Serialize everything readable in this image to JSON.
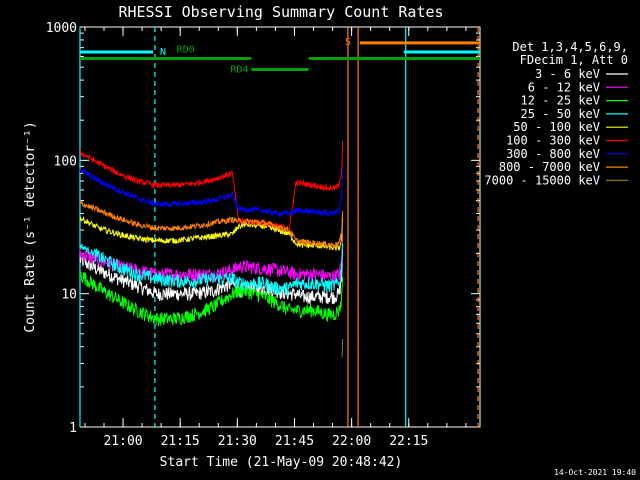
{
  "chart_data": {
    "type": "line",
    "title": "RHESSI Observing Summary Count Rates",
    "xlabel": "Start Time (21-May-09 20:48:42)",
    "ylabel": "Count Rate (s⁻¹ detector⁻¹)",
    "ylog": true,
    "ylim": [
      1,
      1000
    ],
    "xlim": [
      0,
      6300
    ],
    "x_unit": "seconds after 21-May-09 20:48:42",
    "x_ticks": [
      {
        "t": 678,
        "label": "21:00"
      },
      {
        "t": 1578,
        "label": "21:15"
      },
      {
        "t": 2478,
        "label": "21:30"
      },
      {
        "t": 3378,
        "label": "21:45"
      },
      {
        "t": 4278,
        "label": "22:00"
      },
      {
        "t": 5178,
        "label": "22:15"
      }
    ],
    "y_ticks": [
      {
        "v": 1,
        "label": "1"
      },
      {
        "v": 10,
        "label": "10"
      },
      {
        "v": 100,
        "label": "100"
      },
      {
        "v": 1000,
        "label": "1000"
      }
    ],
    "legend_header": [
      "Det 1,3,4,5,6,9,",
      "FDecim 1, Att 0"
    ],
    "footer_date": "14-Oct-2021 19:40",
    "x": [
      0,
      300,
      600,
      900,
      1200,
      1500,
      1800,
      2100,
      2400,
      2500,
      2600,
      2900,
      3100,
      3300,
      3400,
      3500,
      3700,
      3900,
      4000,
      4080,
      4120,
      4140
    ],
    "series": [
      {
        "name": "3 - 6 keV",
        "color": "#ffffff",
        "values": [
          18,
          15,
          13,
          11.5,
          10,
          10,
          10,
          10.5,
          12,
          10.5,
          11,
          11,
          10.5,
          10,
          10,
          9.5,
          9.5,
          9.5,
          9.5,
          10,
          13,
          26
        ]
      },
      {
        "name": "6 - 12 keV",
        "color": "#ff00ff",
        "values": [
          20,
          18,
          16,
          15,
          14,
          14,
          14,
          14,
          15,
          16,
          16,
          15.5,
          15,
          14.5,
          14,
          14,
          14,
          13.5,
          13.5,
          14,
          17,
          30
        ]
      },
      {
        "name": "12 - 25 keV",
        "color": "#00ff00",
        "values": [
          14,
          11,
          9,
          7.5,
          6.5,
          6.5,
          7,
          8,
          10,
          10.5,
          10.5,
          9.5,
          8.5,
          7.5,
          7.5,
          7.5,
          7.5,
          7,
          7,
          7.5,
          9,
          16
        ]
      },
      {
        "name": "25 - 50 keV",
        "color": "#00ffff",
        "values": [
          23,
          19,
          16,
          14,
          13,
          12.5,
          12.5,
          13,
          13,
          12,
          12,
          12,
          11,
          11,
          12,
          12,
          12,
          11.5,
          11.5,
          12,
          16,
          28
        ]
      },
      {
        "name": "50 - 100 keV",
        "color": "#ffff00",
        "values": [
          37,
          31,
          28,
          26,
          25,
          25,
          26,
          27,
          28,
          32,
          33,
          32,
          30,
          28,
          24,
          23,
          23,
          22.5,
          22,
          22,
          25,
          40
        ]
      },
      {
        "name": "100 - 300 keV",
        "color": "#ff0000",
        "values": [
          115,
          95,
          80,
          70,
          65,
          65,
          67,
          72,
          80,
          35,
          35,
          34,
          32,
          31,
          68,
          67,
          65,
          62,
          62,
          64,
          80,
          170
        ]
      },
      {
        "name": "300 - 800 keV",
        "color": "#0000ff",
        "values": [
          85,
          70,
          60,
          52,
          47,
          47,
          48,
          50,
          55,
          43,
          43,
          42,
          40,
          40,
          42,
          42,
          41,
          40,
          40,
          42,
          52,
          100
        ]
      },
      {
        "name": "800 - 7000 keV",
        "color": "#ff8000",
        "values": [
          48,
          42,
          37,
          33,
          31,
          31,
          32,
          34,
          36,
          35,
          35,
          34,
          32,
          30,
          25,
          24.5,
          24,
          23.5,
          23,
          24,
          28,
          48
        ]
      },
      {
        "name": "7000 - 15000 keV",
        "color": "#808000",
        "values": [
          1.2,
          null,
          null,
          null,
          null,
          null,
          null,
          null,
          null,
          null,
          null,
          null,
          null,
          null,
          null,
          null,
          null,
          null,
          null,
          null,
          2.5,
          5
        ]
      }
    ],
    "annotations": [
      {
        "label": "N",
        "kind": "cyan-bar",
        "t_start": 0,
        "t_end": 1150,
        "value": 650,
        "color": "#00ffff"
      },
      {
        "label": "S",
        "kind": "orange-bar",
        "t_start": 4410,
        "t_end": 6300,
        "value": 760,
        "color": "#ff8000"
      },
      {
        "label": "",
        "kind": "cyan-bar",
        "t_start": 5100,
        "t_end": 6300,
        "value": 650,
        "color": "#00ffff"
      },
      {
        "label": "RD0",
        "kind": "green-bar",
        "t_start": 0,
        "t_end": 2700,
        "value": 580,
        "color": "#00a000"
      },
      {
        "label": "",
        "kind": "green-bar",
        "t_start": 3600,
        "t_end": 6300,
        "value": 580,
        "color": "#00a000"
      },
      {
        "label": "RD4",
        "kind": "green-bar",
        "t_start": 2700,
        "t_end": 3600,
        "value": 480,
        "color": "#00a000"
      }
    ],
    "vlines": [
      {
        "t": 0,
        "color": "#00ffff",
        "style": "solid"
      },
      {
        "t": 1180,
        "color": "#00ffff",
        "style": "dashed"
      },
      {
        "t": 4220,
        "color": "#ff8000",
        "style": "solid"
      },
      {
        "t": 4380,
        "color": "#ff8000",
        "style": "solid"
      },
      {
        "t": 5130,
        "color": "#00ffff",
        "style": "solid"
      },
      {
        "t": 6270,
        "color": "#ff8000",
        "style": "dashed"
      }
    ]
  }
}
